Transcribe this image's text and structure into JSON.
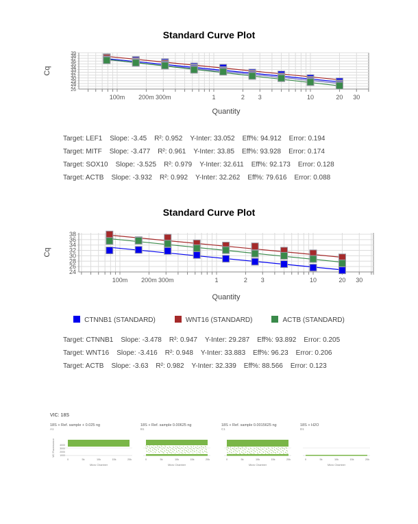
{
  "chart_data": [
    {
      "type": "scatter",
      "title": "Standard Curve Plot",
      "xlabel": "Quantity",
      "ylabel": "Cq",
      "xscale": "log",
      "x_tick_labels": [
        "100m",
        "200m",
        "300m",
        "1",
        "2",
        "3",
        "10",
        "20",
        "30"
      ],
      "y_tick_labels": [
        "26",
        "27",
        "28",
        "29",
        "30",
        "31",
        "32",
        "33",
        "34",
        "35",
        "36",
        "37",
        "38",
        "39"
      ],
      "ylim": [
        26,
        39
      ],
      "x": [
        0.078,
        0.156,
        0.3125,
        0.625,
        1.25,
        2.5,
        5,
        10,
        20
      ],
      "series": [
        {
          "name": "LEF1",
          "color": "#0000ee",
          "slope": -3.45,
          "intercept": 33.052,
          "values": [
            37.4,
            36.4,
            35.6,
            34.1,
            33.6,
            31.9,
            31.2,
            29.9,
            28.7
          ]
        },
        {
          "name": "MITF",
          "color": "#a52a2a",
          "slope": -3.477,
          "intercept": 33.85,
          "values": [
            37.2,
            36.0,
            35.2,
            33.7,
            32.8,
            31.5,
            30.5,
            29.3,
            28.0
          ]
        },
        {
          "name": "SOX10",
          "color": "#7070c0",
          "slope": -3.525,
          "intercept": 32.611,
          "values": [
            36.6,
            35.7,
            34.8,
            33.5,
            32.6,
            31.2,
            30.2,
            29.0,
            27.8
          ]
        },
        {
          "name": "ACTB",
          "color": "#3a8a4a",
          "slope": -3.932,
          "intercept": 32.262,
          "values": [
            36.3,
            35.4,
            34.4,
            32.9,
            32.2,
            30.7,
            29.9,
            28.5,
            27.2
          ]
        }
      ],
      "grid": true,
      "legend": "none"
    },
    {
      "type": "scatter",
      "title": "Standard Curve Plot",
      "xlabel": "Quantity",
      "ylabel": "Cq",
      "xscale": "log",
      "x_tick_labels": [
        "100m",
        "200m",
        "300m",
        "1",
        "2",
        "3",
        "10",
        "20",
        "30"
      ],
      "y_tick_labels": [
        "24",
        "26",
        "28",
        "30",
        "32",
        "34",
        "36",
        "38"
      ],
      "ylim": [
        24,
        38.5
      ],
      "x": [
        0.078,
        0.156,
        0.3125,
        0.625,
        1.25,
        2.5,
        5,
        10,
        20
      ],
      "series": [
        {
          "name": "CTNNB1 (STANDARD)",
          "color": "#0000ee",
          "slope": -3.478,
          "intercept": 29.287,
          "values": [
            32.0,
            32.2,
            31.8,
            30.3,
            28.9,
            27.8,
            26.9,
            25.6,
            24.6
          ]
        },
        {
          "name": "WNT16 (STANDARD)",
          "color": "#a52a2a",
          "slope": -3.416,
          "intercept": 33.883,
          "values": [
            37.9,
            35.8,
            36.7,
            34.6,
            33.8,
            33.5,
            31.9,
            30.9,
            29.4
          ]
        },
        {
          "name": "ACTB (STANDARD)",
          "color": "#3a8a4a",
          "slope": -3.63,
          "intercept": 32.339,
          "values": [
            35.5,
            35.6,
            34.5,
            32.8,
            32.1,
            30.8,
            30.0,
            28.8,
            27.2
          ]
        }
      ],
      "grid": true,
      "legend": "bottom"
    }
  ],
  "plot1": {
    "title": "Standard Curve Plot",
    "ylabel": "Cq",
    "xlabel": "Quantity",
    "stats": [
      {
        "target": "Target: LEF1",
        "slope": "Slope: -3.45",
        "r2": "R²: 0.952",
        "yinter": "Y-Inter: 33.052",
        "eff": "Eff%: 94.912",
        "error": "Error: 0.194"
      },
      {
        "target": "Target: MITF",
        "slope": "Slope: -3.477",
        "r2": "R²: 0.961",
        "yinter": "Y-Inter: 33.85",
        "eff": "Eff%: 93.928",
        "error": "Error: 0.174"
      },
      {
        "target": "Target: SOX10",
        "slope": "Slope: -3.525",
        "r2": "R²: 0.979",
        "yinter": "Y-Inter: 32.611",
        "eff": "Eff%: 92.173",
        "error": "Error: 0.128"
      },
      {
        "target": "Target: ACTB",
        "slope": "Slope: -3.932",
        "r2": "R²: 0.992",
        "yinter": "Y-Inter: 32.262",
        "eff": "Eff%: 79.616",
        "error": "Error: 0.088"
      }
    ]
  },
  "plot2": {
    "title": "Standard Curve Plot",
    "ylabel": "Cq",
    "xlabel": "Quantity",
    "legend": [
      {
        "label": "CTNNB1 (STANDARD)",
        "color": "#0000ee"
      },
      {
        "label": "WNT16 (STANDARD)",
        "color": "#a52a2a"
      },
      {
        "label": "ACTB (STANDARD)",
        "color": "#3a8a4a"
      }
    ],
    "stats": [
      {
        "target": "Target: CTNNB1",
        "slope": "Slope: -3.478",
        "r2": "R²: 0.947",
        "yinter": "Y-Inter: 29.287",
        "eff": "Eff%: 93.892",
        "error": "Error: 0.205"
      },
      {
        "target": "Target: WNT16",
        "slope": "Slope: -3.416",
        "r2": "R²: 0.948",
        "yinter": "Y-Inter: 33.883",
        "eff": "Eff%: 96.23",
        "error": "Error: 0.206"
      },
      {
        "target": "Target: ACTB",
        "slope": "Slope: -3.63",
        "r2": "R²: 0.982",
        "yinter": "Y-Inter: 32.339",
        "eff": "Eff%: 88.566",
        "error": "Error: 0.123"
      }
    ]
  },
  "vic_panel": {
    "heading": "VIC: 18S",
    "ylabel": "VIC Fluorescence",
    "xlabel": "Micro Chamber",
    "x_ticks": [
      "0",
      "5k",
      "10k",
      "15k",
      "20k"
    ],
    "y_ticks": [
      "4000",
      "3000",
      "2000",
      "1000"
    ],
    "wells": [
      {
        "title": "18S + Ref. sample + 0.025 ng",
        "well": "A1"
      },
      {
        "title": "18S + Ref. sample 0.00625 ng",
        "well": "B1"
      },
      {
        "title": "18S + Ref. sample 0.0015625 ng",
        "well": "C1"
      },
      {
        "title": "18S + H2O",
        "well": "D1"
      }
    ],
    "color": "#7ab648"
  }
}
